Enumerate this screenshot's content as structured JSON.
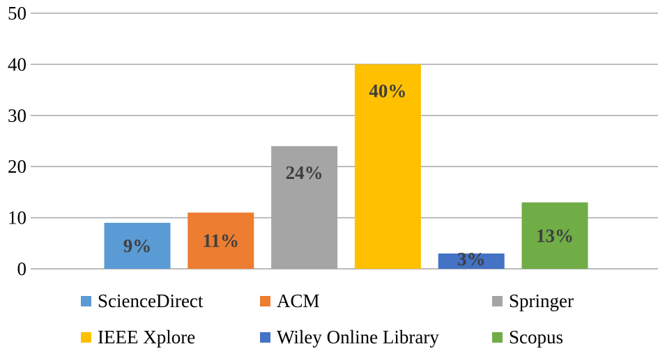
{
  "chart_data": {
    "type": "bar",
    "categories": [
      "ScienceDirect",
      "ACM",
      "Springer",
      "IEEE Xplore",
      "Wiley Online Library",
      "Scopus"
    ],
    "values": [
      9,
      11,
      24,
      40,
      3,
      13
    ],
    "data_labels": [
      "9%",
      "11%",
      "24%",
      "40%",
      "3%",
      "13%"
    ],
    "colors": [
      "#5b9bd5",
      "#ed7d31",
      "#a5a5a5",
      "#ffc000",
      "#4472c4",
      "#70ad47"
    ],
    "ylim": [
      0,
      50
    ],
    "yticks": [
      "0",
      "10",
      "20",
      "30",
      "40",
      "50"
    ],
    "grid": true,
    "legend_position": "bottom",
    "title": "",
    "xlabel": "",
    "ylabel": ""
  },
  "legend": {
    "items": [
      {
        "label": "ScienceDirect",
        "color": "#5b9bd5"
      },
      {
        "label": "ACM",
        "color": "#ed7d31"
      },
      {
        "label": "Springer",
        "color": "#a5a5a5"
      },
      {
        "label": "IEEE Xplore",
        "color": "#ffc000"
      },
      {
        "label": "Wiley Online Library",
        "color": "#4472c4"
      },
      {
        "label": "Scopus",
        "color": "#70ad47"
      }
    ]
  }
}
